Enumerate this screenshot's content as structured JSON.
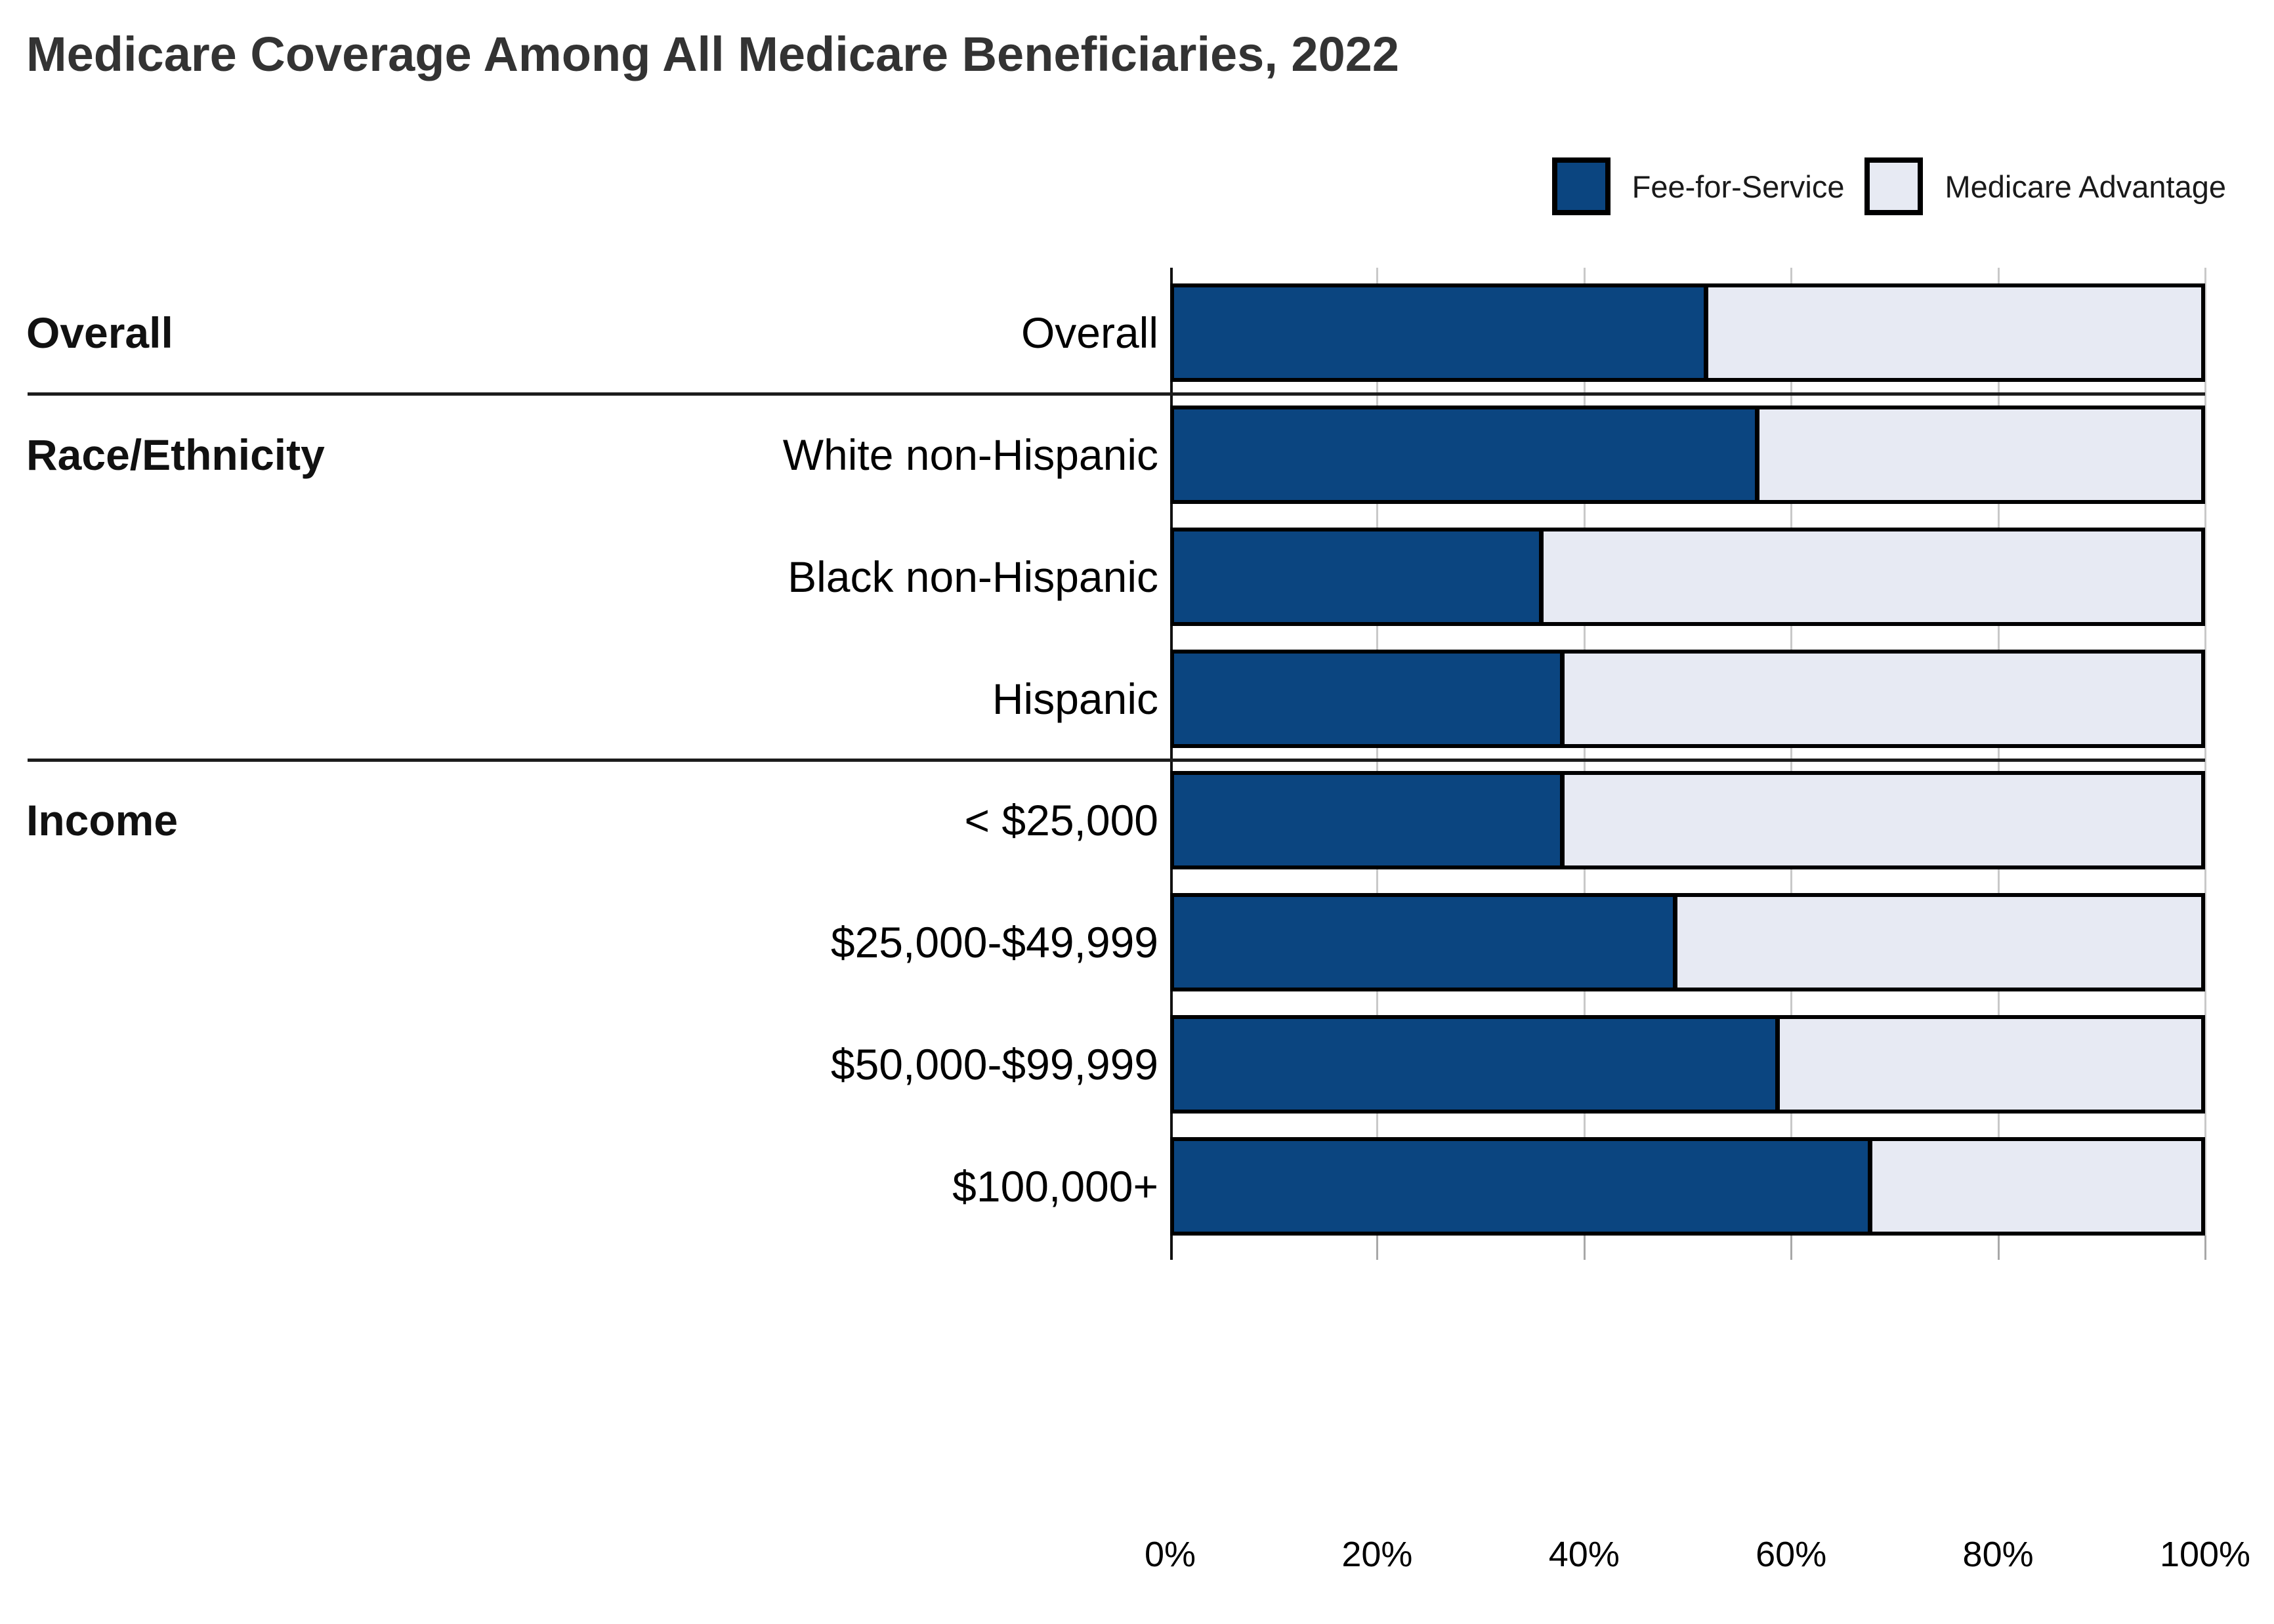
{
  "title": "Medicare Coverage Among All Medicare Beneficiaries, 2022",
  "legend": [
    {
      "label": "Fee-for-Service",
      "color": "#0b4580"
    },
    {
      "label": "Medicare Advantage",
      "color": "#e7eaf3"
    }
  ],
  "colors": {
    "fee_for_service": "#0b4580",
    "medicare_advantage": "#e7eaf3",
    "bar_border": "#000000",
    "gridline": "#c9c9c9",
    "title_text": "#333333"
  },
  "chart_data": {
    "type": "bar",
    "orientation": "horizontal",
    "stacked": true,
    "title": "Medicare Coverage Among All Medicare Beneficiaries, 2022",
    "xlabel": "",
    "ylabel": "",
    "xlim": [
      0,
      100
    ],
    "unit": "percent",
    "grid": true,
    "legend_position": "top-right",
    "x_ticks": [
      "0%",
      "20%",
      "40%",
      "60%",
      "80%",
      "100%"
    ],
    "groups": [
      {
        "label": "Overall",
        "rows": [
          "Overall"
        ]
      },
      {
        "label": "Race/Ethnicity",
        "rows": [
          "White non-Hispanic",
          "Black non-Hispanic",
          "Hispanic"
        ]
      },
      {
        "label": "Income",
        "rows": [
          "< $25,000",
          "$25,000-$49,999",
          "$50,000-$99,999",
          "$100,000+"
        ]
      }
    ],
    "categories": [
      "Overall",
      "White non-Hispanic",
      "Black non-Hispanic",
      "Hispanic",
      "< $25,000",
      "$25,000-$49,999",
      "$50,000-$99,999",
      "$100,000+"
    ],
    "series": [
      {
        "name": "Fee-for-Service",
        "values": [
          52,
          57,
          36,
          38,
          38,
          49,
          59,
          68
        ]
      },
      {
        "name": "Medicare Advantage",
        "values": [
          48,
          43,
          64,
          62,
          62,
          51,
          41,
          32
        ]
      }
    ]
  }
}
